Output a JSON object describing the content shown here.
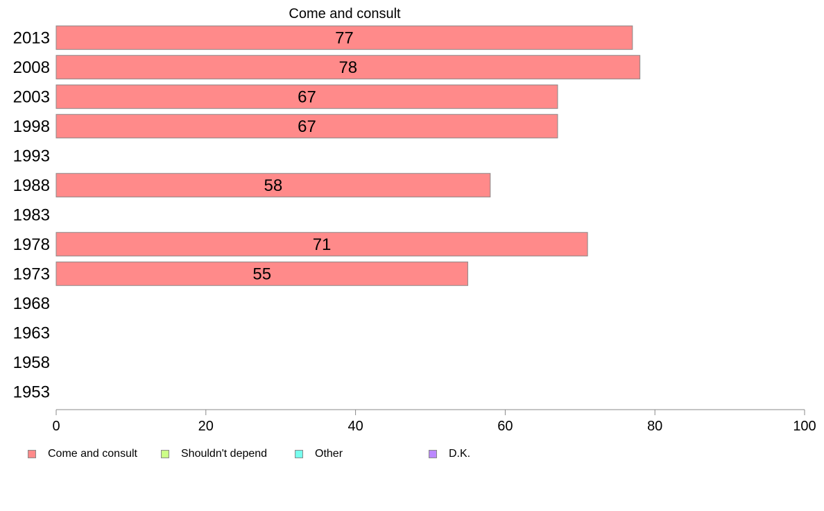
{
  "chart_data": {
    "type": "bar",
    "orientation": "horizontal",
    "title": "Come and consult",
    "categories": [
      "2013",
      "2008",
      "2003",
      "1998",
      "1993",
      "1988",
      "1983",
      "1978",
      "1973",
      "1968",
      "1963",
      "1958",
      "1953"
    ],
    "series": [
      {
        "name": "Come and consult",
        "color": "#ff8a8a",
        "values": [
          77,
          78,
          67,
          67,
          null,
          58,
          null,
          71,
          55,
          null,
          null,
          null,
          null
        ],
        "data_labels": [
          "77",
          "78",
          "67",
          "67",
          "",
          "58",
          "",
          "71",
          "55",
          "",
          "",
          "",
          ""
        ]
      }
    ],
    "xlim": [
      0,
      100
    ],
    "x_ticks": [
      "0",
      "20",
      "40",
      "60",
      "80",
      "100"
    ],
    "grid": false,
    "legend_placement": "bottom",
    "legend": [
      {
        "label": "Come and consult",
        "color": "#ff8a8a"
      },
      {
        "label": "Shouldn't depend",
        "color": "#ccff88"
      },
      {
        "label": "Other",
        "color": "#77ffee"
      },
      {
        "label": "D.K.",
        "color": "#bb88ff"
      }
    ]
  }
}
